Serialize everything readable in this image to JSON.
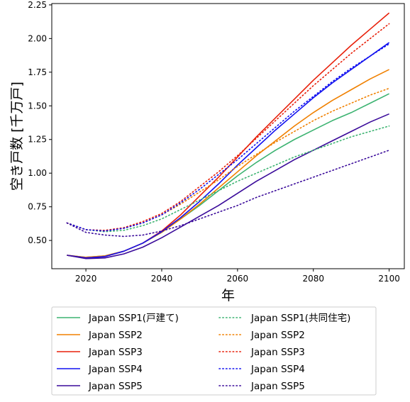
{
  "chart_data": {
    "type": "line",
    "title": "",
    "xlabel": "年",
    "ylabel": "空き戸数 [千万戸]",
    "xlim": [
      2011,
      2104
    ],
    "ylim": [
      0.29,
      2.26
    ],
    "xticks": [
      2020,
      2040,
      2060,
      2080,
      2100
    ],
    "yticks": [
      0.5,
      0.75,
      1.0,
      1.25,
      1.5,
      1.75,
      2.0,
      2.25
    ],
    "ytick_labels": [
      "0.50",
      "0.75",
      "1.00",
      "1.25",
      "1.50",
      "1.75",
      "2.00",
      "2.25"
    ],
    "grid": false,
    "legend_placement": "below",
    "x": [
      2015,
      2020,
      2025,
      2030,
      2035,
      2040,
      2045,
      2050,
      2055,
      2060,
      2065,
      2070,
      2075,
      2080,
      2085,
      2090,
      2095,
      2100
    ],
    "series": [
      {
        "name": "Japan SSP1(戸建て)",
        "color": "#3cb371",
        "dash": "solid",
        "values": [
          0.39,
          0.375,
          0.385,
          0.42,
          0.48,
          0.56,
          0.66,
          0.76,
          0.87,
          0.98,
          1.08,
          1.17,
          1.25,
          1.32,
          1.39,
          1.45,
          1.52,
          1.59
        ]
      },
      {
        "name": "Japan SSP2",
        "color": "#f08000",
        "dash": "solid",
        "values": [
          0.39,
          0.375,
          0.385,
          0.42,
          0.48,
          0.56,
          0.66,
          0.77,
          0.89,
          1.01,
          1.13,
          1.24,
          1.35,
          1.45,
          1.54,
          1.62,
          1.7,
          1.77
        ]
      },
      {
        "name": "Japan SSP3",
        "color": "#e8200a",
        "dash": "solid",
        "values": [
          0.39,
          0.37,
          0.38,
          0.42,
          0.48,
          0.57,
          0.69,
          0.83,
          0.97,
          1.12,
          1.27,
          1.41,
          1.55,
          1.69,
          1.82,
          1.95,
          2.07,
          2.19
        ]
      },
      {
        "name": "Japan SSP4",
        "color": "#1010f0",
        "dash": "solid",
        "values": [
          0.39,
          0.37,
          0.38,
          0.42,
          0.48,
          0.565,
          0.67,
          0.79,
          0.92,
          1.06,
          1.19,
          1.32,
          1.44,
          1.56,
          1.67,
          1.77,
          1.87,
          1.97
        ]
      },
      {
        "name": "Japan SSP5",
        "color": "#3a0a9a",
        "dash": "solid",
        "values": [
          0.39,
          0.365,
          0.37,
          0.4,
          0.45,
          0.52,
          0.6,
          0.68,
          0.76,
          0.85,
          0.94,
          1.02,
          1.1,
          1.17,
          1.24,
          1.31,
          1.38,
          1.44
        ]
      },
      {
        "name": "Japan SSP1(共同住宅)",
        "color": "#3cb371",
        "dash": "dotted",
        "values": [
          0.63,
          0.58,
          0.565,
          0.575,
          0.61,
          0.66,
          0.73,
          0.8,
          0.87,
          0.94,
          1.0,
          1.06,
          1.12,
          1.17,
          1.22,
          1.27,
          1.31,
          1.35
        ]
      },
      {
        "name": "Japan SSP2",
        "color": "#f08000",
        "dash": "dotted",
        "values": [
          0.63,
          0.58,
          0.57,
          0.59,
          0.63,
          0.69,
          0.77,
          0.86,
          0.95,
          1.05,
          1.14,
          1.23,
          1.31,
          1.39,
          1.46,
          1.52,
          1.58,
          1.63
        ]
      },
      {
        "name": "Japan SSP3",
        "color": "#e8200a",
        "dash": "dotted",
        "values": [
          0.63,
          0.58,
          0.575,
          0.595,
          0.64,
          0.7,
          0.79,
          0.9,
          1.01,
          1.13,
          1.26,
          1.39,
          1.52,
          1.65,
          1.77,
          1.89,
          2.0,
          2.11
        ]
      },
      {
        "name": "Japan SSP4",
        "color": "#1010f0",
        "dash": "dotted",
        "values": [
          0.63,
          0.58,
          0.57,
          0.59,
          0.63,
          0.69,
          0.78,
          0.88,
          0.99,
          1.1,
          1.22,
          1.34,
          1.46,
          1.57,
          1.68,
          1.78,
          1.87,
          1.96
        ]
      },
      {
        "name": "Japan SSP5",
        "color": "#3a0a9a",
        "dash": "dotted",
        "values": [
          0.63,
          0.56,
          0.54,
          0.53,
          0.54,
          0.57,
          0.61,
          0.66,
          0.71,
          0.76,
          0.82,
          0.87,
          0.92,
          0.97,
          1.02,
          1.07,
          1.12,
          1.17
        ]
      }
    ]
  }
}
